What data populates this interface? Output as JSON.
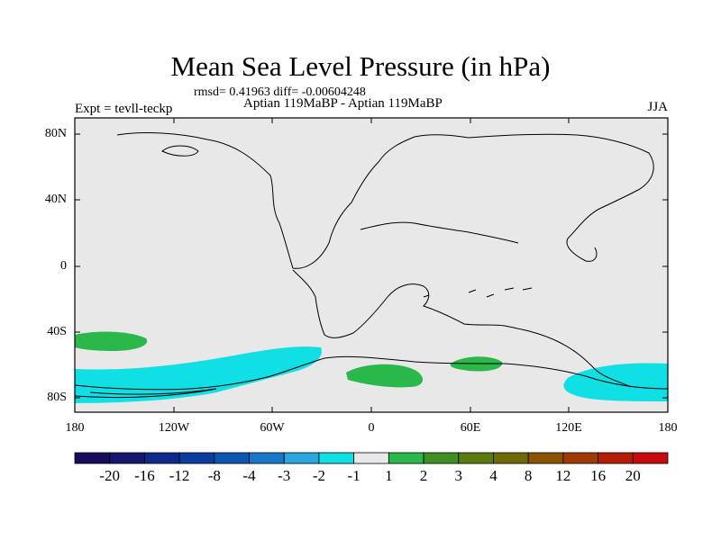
{
  "title": "Mean Sea Level Pressure (in hPa)",
  "stats": "rmsd= 0.41963 diff= -0.00604248",
  "expt": "Expt = tevll-teckp",
  "subtitle": "Aptian   119MaBP - Aptian   119MaBP",
  "season": "JJA",
  "lat_labels": [
    "80N",
    "40N",
    "0",
    "40S",
    "80S"
  ],
  "lon_labels": [
    "180",
    "120W",
    "60W",
    "0",
    "60E",
    "120E",
    "180"
  ],
  "colorbar": {
    "labels": [
      "-20",
      "-16",
      "-12",
      "-8",
      "-4",
      "-3",
      "-2",
      "-1",
      "1",
      "2",
      "3",
      "4",
      "8",
      "12",
      "16",
      "20"
    ],
    "colors": [
      "#1a0a5c",
      "#151770",
      "#0f2a8a",
      "#0a3d9e",
      "#0a56b0",
      "#1a78c8",
      "#2aa6dc",
      "#10e0e4",
      "#e8e8e8",
      "#2ab84a",
      "#3f8f22",
      "#5a7a12",
      "#6f6a08",
      "#8a5404",
      "#a03a04",
      "#b41e06",
      "#c80a0a"
    ]
  },
  "colors": {
    "background_field": "#e8e8e8",
    "negative_anomaly": "#10e0e4",
    "positive_anomaly": "#2ab84a"
  }
}
